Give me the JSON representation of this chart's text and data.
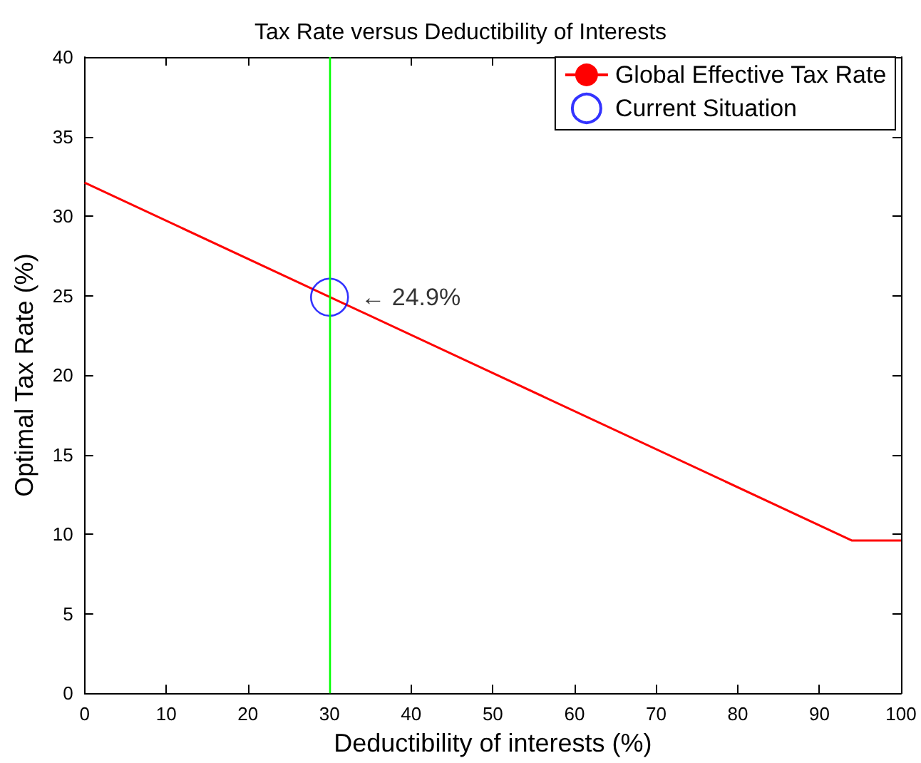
{
  "chart_data": {
    "type": "line",
    "title": "Tax Rate versus Deductibility of Interests",
    "xlabel": "Deductibility of interests (%)",
    "ylabel": "Optimal Tax Rate (%)",
    "series": [
      {
        "name": "Global Effective Tax Rate",
        "color": "#ff0000",
        "x": [
          0,
          94,
          100
        ],
        "values": [
          32.1,
          9.6,
          9.6
        ],
        "marker": "none"
      },
      {
        "name": "Current Situation",
        "type": "scatter",
        "color": "#0000ff",
        "x": [
          30
        ],
        "values": [
          24.9
        ],
        "marker": "circle"
      }
    ],
    "ref_lines": [
      {
        "axis": "x",
        "value": 30,
        "color": "#00ff00"
      }
    ],
    "annotations": [
      {
        "text": "← 24.9%",
        "x": 30,
        "y": 24.9
      }
    ],
    "xlim": [
      0,
      100
    ],
    "xticks": [
      0,
      10,
      20,
      30,
      40,
      50,
      60,
      70,
      80,
      90,
      100
    ],
    "ylim": [
      0,
      40
    ],
    "yticks": [
      0,
      5,
      10,
      15,
      20,
      25,
      30,
      35,
      40
    ],
    "grid": false,
    "legend": "top right"
  }
}
